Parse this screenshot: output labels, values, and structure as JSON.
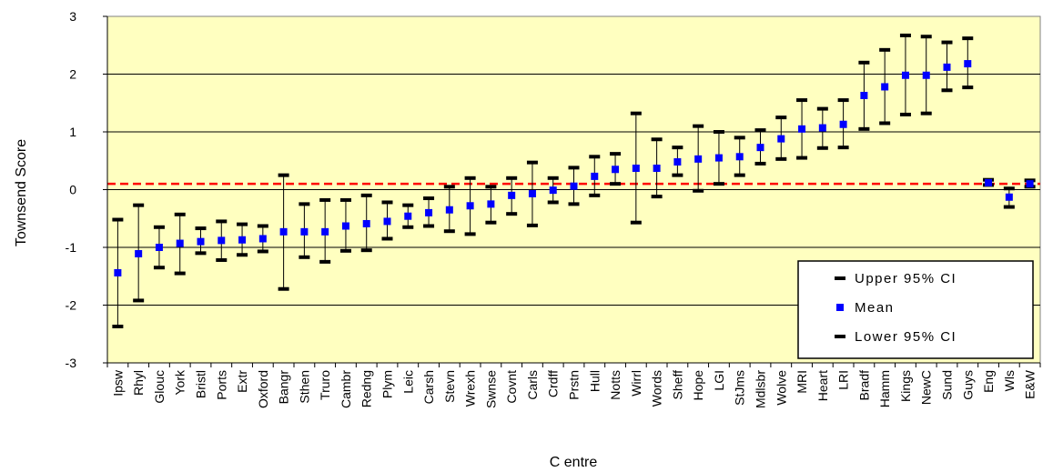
{
  "chart_data": {
    "type": "scatter",
    "xlabel": "C entre",
    "ylabel": "Townsend Score",
    "ylim": [
      -3,
      3
    ],
    "yticks": [
      -3,
      -2,
      -1,
      0,
      1,
      2,
      3
    ],
    "grid": true,
    "reference_line": {
      "y": 0.1,
      "color": "#ff0000",
      "style": "dashed"
    },
    "plot_background": "#ffffc0",
    "mean_color": "#0000ff",
    "ci_color": "#000000",
    "legend": {
      "placement": "bottom-right",
      "entries": [
        "Upper 95% CI",
        "Mean",
        "Lower 95% CI"
      ]
    },
    "categories": [
      "Ipsw",
      "Rhyl",
      "Glouc",
      "York",
      "Bristl",
      "Ports",
      "Extr",
      "Oxford",
      "Bangr",
      "Sthen",
      "Truro",
      "Cambr",
      "Redng",
      "Plym",
      "Leic",
      "Carsh",
      "Stevn",
      "Wrexh",
      "Swnse",
      "Covnt",
      "Carls",
      "Crdff",
      "Prstn",
      "Hull",
      "Notts",
      "Wirrl",
      "Words",
      "Sheff",
      "Hope",
      "LGI",
      "StJms",
      "Mdlsbr",
      "Wolve",
      "MRI",
      "Heart",
      "LRI",
      "Bradf",
      "Hamm",
      "Kings",
      "NewC",
      "Sund",
      "Guys",
      "Eng",
      "Wls",
      "E&W"
    ],
    "series": [
      {
        "name": "Upper 95% CI",
        "values": [
          -0.52,
          -0.27,
          -0.65,
          -0.43,
          -0.67,
          -0.55,
          -0.6,
          -0.63,
          0.25,
          -0.25,
          -0.18,
          -0.18,
          -0.1,
          -0.22,
          -0.27,
          -0.15,
          0.05,
          0.2,
          0.05,
          0.2,
          0.47,
          0.2,
          0.38,
          0.57,
          0.62,
          1.32,
          0.87,
          0.73,
          1.1,
          1.0,
          0.9,
          1.03,
          1.25,
          1.55,
          1.4,
          1.55,
          2.2,
          2.42,
          2.67,
          2.65,
          2.55,
          2.62,
          0.17,
          0.02,
          0.16
        ]
      },
      {
        "name": "Mean",
        "values": [
          -1.44,
          -1.11,
          -1.0,
          -0.93,
          -0.9,
          -0.88,
          -0.87,
          -0.85,
          -0.73,
          -0.73,
          -0.73,
          -0.63,
          -0.59,
          -0.55,
          -0.46,
          -0.4,
          -0.35,
          -0.28,
          -0.25,
          -0.1,
          -0.07,
          -0.01,
          0.06,
          0.23,
          0.35,
          0.37,
          0.37,
          0.48,
          0.53,
          0.55,
          0.57,
          0.73,
          0.88,
          1.05,
          1.07,
          1.13,
          1.63,
          1.78,
          1.98,
          1.98,
          2.12,
          2.18,
          0.12,
          -0.13,
          0.1
        ]
      },
      {
        "name": "Lower 95% CI",
        "values": [
          -2.37,
          -1.92,
          -1.35,
          -1.45,
          -1.1,
          -1.22,
          -1.13,
          -1.07,
          -1.72,
          -1.17,
          -1.25,
          -1.06,
          -1.05,
          -0.85,
          -0.65,
          -0.63,
          -0.72,
          -0.77,
          -0.57,
          -0.42,
          -0.62,
          -0.22,
          -0.25,
          -0.1,
          0.1,
          -0.57,
          -0.12,
          0.25,
          -0.02,
          0.1,
          0.25,
          0.45,
          0.53,
          0.55,
          0.72,
          0.73,
          1.05,
          1.15,
          1.3,
          1.32,
          1.72,
          1.77,
          0.08,
          -0.3,
          0.05
        ]
      }
    ]
  }
}
